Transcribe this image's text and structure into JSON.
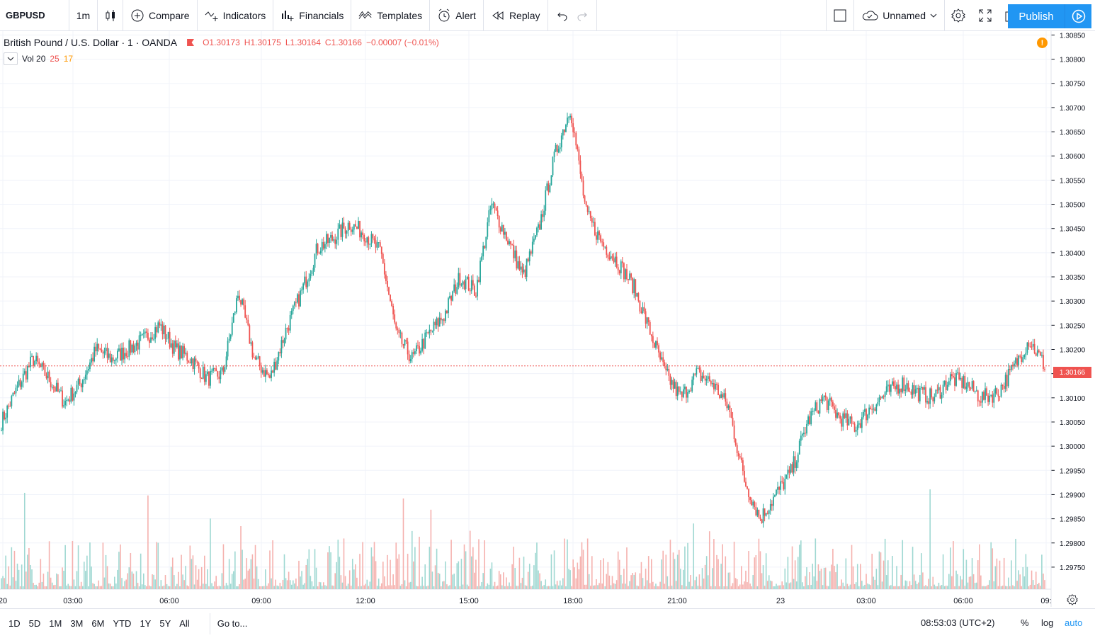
{
  "toolbar": {
    "symbol": "GBPUSD",
    "interval": "1m",
    "compare": "Compare",
    "indicators": "Indicators",
    "financials": "Financials",
    "templates": "Templates",
    "alert": "Alert",
    "replay": "Replay",
    "layout_name": "Unnamed",
    "publish": "Publish"
  },
  "legend": {
    "title": "British Pound / U.S. Dollar · 1 · OANDA",
    "open": "O1.30173",
    "high": "H1.30175",
    "low": "L1.30164",
    "close": "C1.30166",
    "change": "−0.00007 (−0.01%)",
    "vol_label": "Vol 20",
    "vol_a": "25",
    "vol_b": "17"
  },
  "price_scale": [
    "1.30850",
    "1.30800",
    "1.30750",
    "1.30700",
    "1.30650",
    "1.30600",
    "1.30550",
    "1.30500",
    "1.30450",
    "1.30400",
    "1.30350",
    "1.30300",
    "1.30250",
    "1.30200",
    "1.30150",
    "1.30100",
    "1.30050",
    "1.30000",
    "1.29950",
    "1.29900",
    "1.29850",
    "1.29800",
    "1.29750"
  ],
  "current_price": "1.30166",
  "time_labels": [
    "20",
    "03:00",
    "06:00",
    "09:00",
    "12:00",
    "15:00",
    "18:00",
    "21:00",
    "23",
    "03:00",
    "06:00",
    "09:"
  ],
  "bottom": {
    "ranges": [
      "1D",
      "5D",
      "1M",
      "3M",
      "6M",
      "YTD",
      "1Y",
      "5Y",
      "All"
    ],
    "goto": "Go to...",
    "clock": "08:53:03 (UTC+2)",
    "percent": "%",
    "log": "log",
    "auto": "auto"
  },
  "colors": {
    "up": "#26a69a",
    "down": "#ef5350",
    "accent": "#2196f3",
    "grid": "#f0f3fa",
    "warning": "#ff9800"
  },
  "chart_data": {
    "type": "candlestick",
    "instrument": "GBPUSD",
    "interval": "1m",
    "ylim": [
      1.29725,
      1.30855
    ],
    "x": [
      "00:00",
      "00:30",
      "01:00",
      "01:30",
      "02:00",
      "02:30",
      "03:00",
      "03:30",
      "04:00",
      "04:30",
      "05:00",
      "05:30",
      "06:00",
      "06:30",
      "07:00",
      "07:30",
      "08:00",
      "08:30",
      "09:00",
      "09:30",
      "10:00",
      "10:30",
      "11:00",
      "11:30",
      "12:00",
      "12:30",
      "13:00",
      "13:30",
      "14:00",
      "14:30",
      "15:00",
      "15:30",
      "16:00",
      "16:30",
      "17:00",
      "17:30",
      "18:00",
      "18:30",
      "19:00",
      "19:30",
      "20:00",
      "20:30",
      "21:00",
      "21:30",
      "22:00",
      "22:30",
      "23:00",
      "23:30",
      "00:00",
      "00:30",
      "01:00",
      "01:30",
      "02:00",
      "02:30",
      "03:00",
      "03:30",
      "04:00",
      "04:30",
      "05:00",
      "05:30",
      "06:00",
      "06:30",
      "07:00",
      "07:30",
      "08:00",
      "08:30",
      "08:53"
    ],
    "close": [
      1.3005,
      1.3012,
      1.3018,
      1.3014,
      1.3009,
      1.3013,
      1.302,
      1.3018,
      1.302,
      1.3022,
      1.3025,
      1.302,
      1.3018,
      1.3014,
      1.3015,
      1.3032,
      1.3018,
      1.3014,
      1.3024,
      1.3032,
      1.3041,
      1.3043,
      1.3046,
      1.3044,
      1.304,
      1.3023,
      1.3018,
      1.3023,
      1.3027,
      1.3035,
      1.3032,
      1.305,
      1.3043,
      1.3035,
      1.3045,
      1.306,
      1.307,
      1.3048,
      1.3042,
      1.3038,
      1.3033,
      1.3024,
      1.3015,
      1.301,
      1.3015,
      1.3013,
      1.3008,
      1.2993,
      1.2985,
      1.299,
      1.2995,
      1.3005,
      1.301,
      1.3006,
      1.3004,
      1.3008,
      1.3011,
      1.3013,
      1.3011,
      1.301,
      1.3014,
      1.3013,
      1.301,
      1.3011,
      1.3016,
      1.3022,
      1.30166
    ],
    "volume_peak": 25
  }
}
